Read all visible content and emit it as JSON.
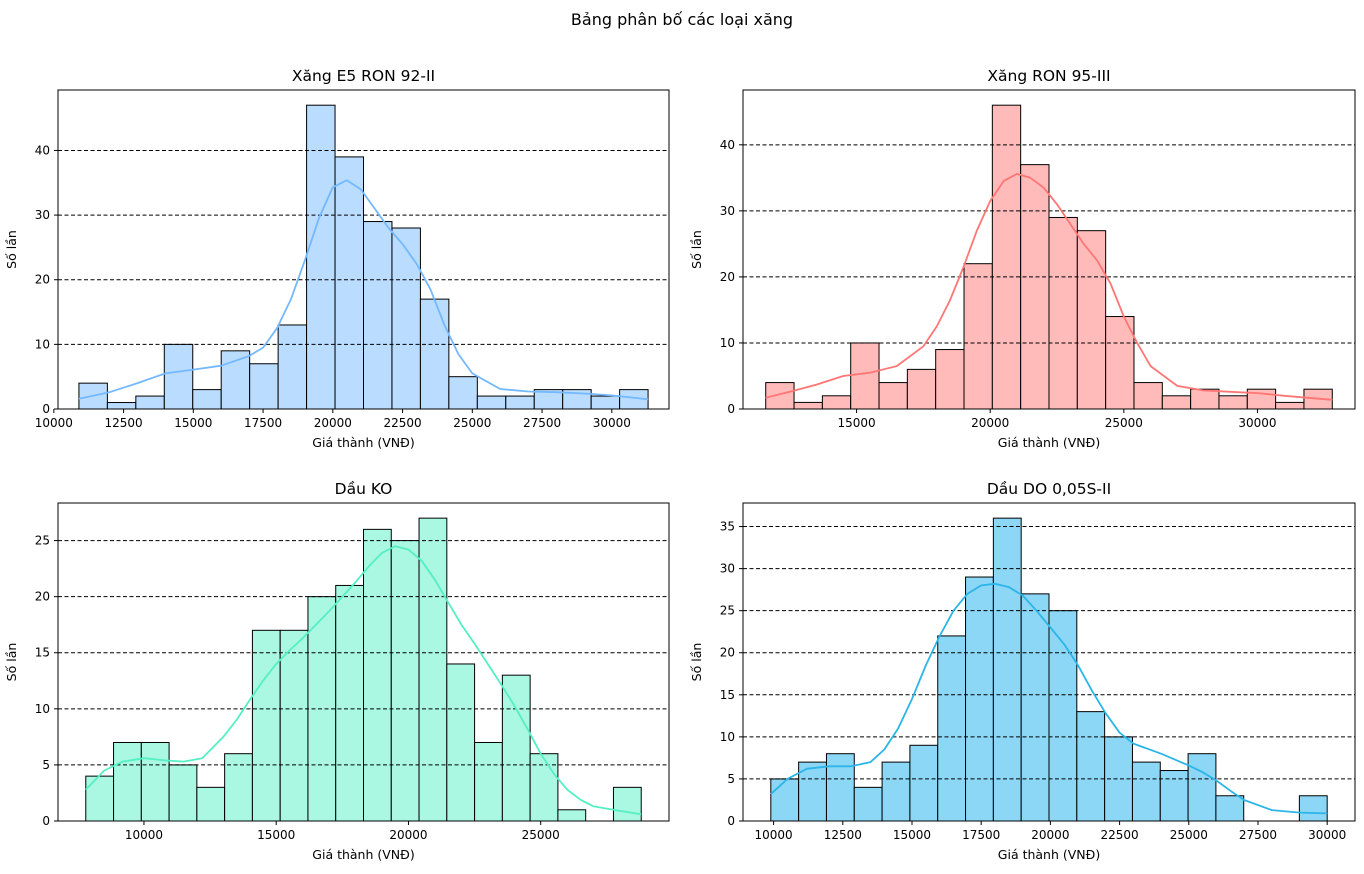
{
  "figure": {
    "title": "Bảng phân bố các loại xăng"
  },
  "chart_data": [
    {
      "type": "bar",
      "subtype": "histogram-with-kde",
      "title": "Xăng E5 RON 92-II",
      "xlabel": "Giá thành (VNĐ)",
      "ylabel": "Số lần",
      "color": "#74B9FF",
      "grid": "horizontal dashed",
      "bin_edges": [
        10900,
        11920,
        12940,
        13960,
        14980,
        16000,
        17020,
        18040,
        19060,
        20080,
        21100,
        22120,
        23140,
        24160,
        25180,
        26200,
        27220,
        28240,
        29260,
        30280,
        31300
      ],
      "values": [
        4,
        1,
        2,
        10,
        3,
        9,
        7,
        13,
        47,
        39,
        29,
        28,
        17,
        5,
        2,
        2,
        3,
        3,
        2,
        3
      ],
      "kde": {
        "x": [
          10900,
          12000,
          13000,
          14000,
          15000,
          16000,
          17000,
          17500,
          18000,
          18500,
          19000,
          19500,
          20000,
          20500,
          21000,
          21500,
          22000,
          22500,
          23000,
          23500,
          24000,
          24500,
          25000,
          26000,
          27000,
          28000,
          29000,
          30000,
          31300
        ],
        "y": [
          1.6,
          2.6,
          4.0,
          5.5,
          6.1,
          6.7,
          8.2,
          9.5,
          12.5,
          17.0,
          23.0,
          29.5,
          34.3,
          35.4,
          34.0,
          31.0,
          28.0,
          25.5,
          22.5,
          18.5,
          13.0,
          8.5,
          5.5,
          3.1,
          2.7,
          2.6,
          2.4,
          2.1,
          1.5
        ]
      },
      "xlim": [
        10150,
        32050
      ],
      "ylim": [
        0,
        49.35
      ],
      "xticks": [
        10000,
        12500,
        15000,
        17500,
        20000,
        22500,
        25000,
        27500,
        30000
      ],
      "yticks": [
        0,
        10,
        20,
        30,
        40
      ],
      "grid_lines": [
        10,
        20,
        30,
        40
      ]
    },
    {
      "type": "bar",
      "subtype": "histogram-with-kde",
      "title": "Xăng RON 95-III",
      "xlabel": "Giá thành (VNĐ)",
      "ylabel": "Số lần",
      "color": "#FF7675",
      "grid": "horizontal dashed",
      "bin_edges": [
        11600,
        12660,
        13720,
        14780,
        15840,
        16900,
        17960,
        19020,
        20080,
        21140,
        22200,
        23260,
        24320,
        25380,
        26440,
        27500,
        28560,
        29620,
        30680,
        31740,
        32800
      ],
      "values": [
        4,
        1,
        2,
        10,
        4,
        6,
        9,
        22,
        46,
        37,
        29,
        27,
        14,
        4,
        2,
        3,
        2,
        3,
        1,
        3
      ],
      "kde": {
        "x": [
          11600,
          12500,
          13500,
          14500,
          15500,
          16500,
          17500,
          18000,
          18500,
          19000,
          19500,
          20000,
          20500,
          21000,
          21500,
          22000,
          22500,
          23000,
          23500,
          24000,
          24500,
          25000,
          25500,
          26000,
          27000,
          28000,
          29000,
          30000,
          31000,
          32800
        ],
        "y": [
          1.7,
          2.6,
          3.7,
          5.0,
          5.5,
          6.5,
          9.5,
          12.5,
          16.5,
          21.5,
          27.0,
          31.5,
          34.5,
          35.6,
          35.0,
          33.5,
          31.0,
          28.0,
          25.0,
          22.5,
          19.0,
          14.0,
          10.0,
          6.5,
          3.5,
          2.8,
          2.6,
          2.4,
          2.0,
          1.4
        ]
      },
      "xlim": [
        10750,
        33650
      ],
      "ylim": [
        0,
        48.3
      ],
      "xticks": [
        15000,
        20000,
        25000,
        30000
      ],
      "yticks": [
        0,
        10,
        20,
        30,
        40
      ],
      "grid_lines": [
        10,
        20,
        30,
        40
      ]
    },
    {
      "type": "bar",
      "subtype": "histogram-with-kde",
      "title": "Dầu KO",
      "xlabel": "Giá thành (VNĐ)",
      "ylabel": "Số lần",
      "color": "#55EFC4",
      "grid": "horizontal dashed",
      "bin_edges": [
        7800,
        8850,
        9900,
        10950,
        12000,
        13050,
        14100,
        15150,
        16200,
        17250,
        18300,
        19350,
        20400,
        21450,
        22500,
        23550,
        24600,
        25650,
        26700,
        27750,
        28800
      ],
      "values": [
        4,
        7,
        7,
        5,
        3,
        6,
        17,
        17,
        20,
        21,
        26,
        25,
        27,
        14,
        7,
        13,
        6,
        1,
        0,
        3
      ],
      "kde": {
        "x": [
          7800,
          8500,
          9200,
          10000,
          10800,
          11500,
          12200,
          13000,
          13500,
          14000,
          14500,
          15000,
          15500,
          16000,
          16500,
          17000,
          17500,
          18000,
          18500,
          19000,
          19500,
          20000,
          20500,
          21000,
          21500,
          22000,
          22500,
          23000,
          23500,
          24000,
          24500,
          25000,
          25500,
          26000,
          26500,
          27000,
          28000,
          28800
        ],
        "y": [
          2.8,
          4.5,
          5.3,
          5.6,
          5.4,
          5.3,
          5.6,
          7.5,
          9.0,
          10.8,
          12.5,
          14.0,
          15.2,
          16.3,
          17.5,
          18.7,
          20.0,
          21.3,
          22.7,
          23.9,
          24.5,
          24.2,
          23.2,
          21.5,
          19.5,
          17.5,
          15.8,
          14.0,
          12.2,
          10.3,
          8.2,
          6.0,
          4.2,
          2.8,
          1.9,
          1.3,
          0.9,
          0.6
        ]
      },
      "xlim": [
        6750,
        29850
      ],
      "ylim": [
        0,
        28.35
      ],
      "xticks": [
        10000,
        15000,
        20000,
        25000
      ],
      "yticks": [
        0,
        5,
        10,
        15,
        20,
        25
      ],
      "grid_lines": [
        5,
        10,
        15,
        20,
        25
      ]
    },
    {
      "type": "bar",
      "subtype": "histogram-with-kde",
      "title": "Dầu DO 0,05S-II",
      "xlabel": "Giá thành (VNĐ)",
      "ylabel": "Số lần",
      "color": "#2BB5E8",
      "bar_fill": "#8CD6F6",
      "grid": "horizontal dashed",
      "bin_edges": [
        9900,
        10905,
        11910,
        12915,
        13920,
        14925,
        15930,
        16935,
        17940,
        18945,
        19950,
        20955,
        21960,
        22965,
        23970,
        24975,
        25980,
        26985,
        27990,
        28995,
        30000
      ],
      "values": [
        5,
        7,
        8,
        4,
        7,
        9,
        22,
        29,
        36,
        27,
        25,
        13,
        10,
        7,
        6,
        8,
        3,
        0,
        0,
        3
      ],
      "kde": {
        "x": [
          9900,
          10500,
          11200,
          12000,
          12800,
          13500,
          14000,
          14500,
          15000,
          15500,
          16000,
          16500,
          17000,
          17500,
          18000,
          18500,
          19000,
          19500,
          20000,
          20500,
          21000,
          21500,
          22000,
          22500,
          23000,
          23500,
          24000,
          24500,
          25000,
          25500,
          26000,
          26500,
          27000,
          28000,
          29000,
          30000
        ],
        "y": [
          3.2,
          5.0,
          6.2,
          6.5,
          6.5,
          7.0,
          8.5,
          11.0,
          14.5,
          18.5,
          22.0,
          25.0,
          27.0,
          28.0,
          28.2,
          27.8,
          26.8,
          25.0,
          23.0,
          21.0,
          18.5,
          15.5,
          12.8,
          10.5,
          9.2,
          8.6,
          8.0,
          7.3,
          6.6,
          5.8,
          4.8,
          3.6,
          2.5,
          1.3,
          1.0,
          0.9
        ]
      },
      "xlim": [
        8895,
        31005
      ],
      "ylim": [
        0,
        37.8
      ],
      "xticks": [
        10000,
        12500,
        15000,
        17500,
        20000,
        22500,
        25000,
        27500,
        30000
      ],
      "yticks": [
        0,
        5,
        10,
        15,
        20,
        25,
        30,
        35
      ],
      "grid_lines": [
        5,
        10,
        15,
        20,
        25,
        30,
        35
      ]
    }
  ]
}
